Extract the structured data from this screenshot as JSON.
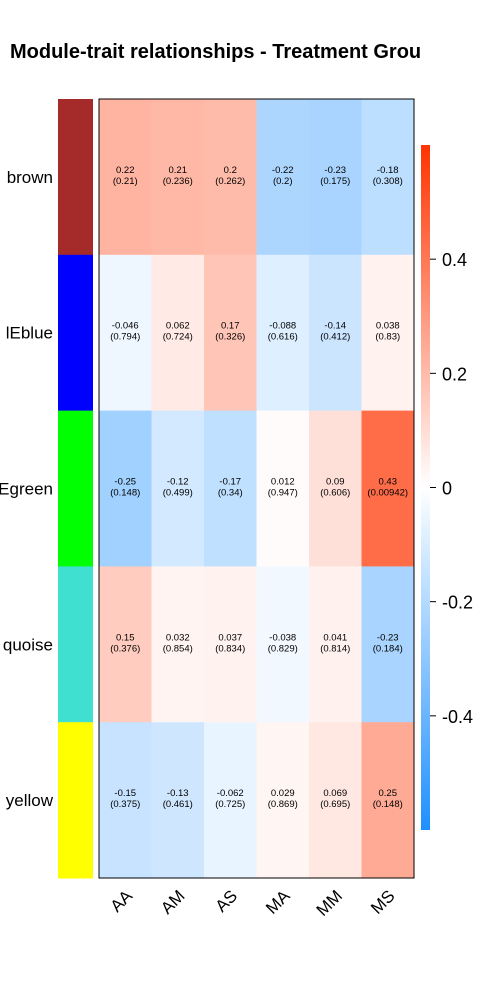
{
  "chart_data": {
    "type": "heatmap",
    "title": "Module-trait relationships - Treatment Grou",
    "rows": [
      {
        "label": "brown",
        "color": "#A52A2A"
      },
      {
        "label": "lEblue",
        "color": "#0000FF"
      },
      {
        "label": "Egreen",
        "color": "#00FF00"
      },
      {
        "label": "quoise",
        "color": "#40E0D0"
      },
      {
        "label": "yellow",
        "color": "#FFFF00"
      }
    ],
    "columns": [
      "AA",
      "AM",
      "AS",
      "MA",
      "MM",
      "MS"
    ],
    "values": [
      [
        0.22,
        0.21,
        0.2,
        -0.22,
        -0.23,
        -0.18
      ],
      [
        -0.046,
        0.062,
        0.17,
        -0.088,
        -0.14,
        0.038
      ],
      [
        -0.25,
        -0.12,
        -0.17,
        0.012,
        0.09,
        0.43
      ],
      [
        0.15,
        0.032,
        0.037,
        -0.038,
        0.041,
        -0.23
      ],
      [
        -0.15,
        -0.13,
        -0.062,
        0.029,
        0.069,
        0.25
      ]
    ],
    "pvalues": [
      [
        "0.21",
        "0.236",
        "0.262",
        "0.2",
        "0.175",
        "0.308"
      ],
      [
        "0.794",
        "0.724",
        "0.326",
        "0.616",
        "0.412",
        "0.83"
      ],
      [
        "0.148",
        "0.499",
        "0.34",
        "0.947",
        "0.606",
        "0.00942"
      ],
      [
        "0.376",
        "0.854",
        "0.834",
        "0.829",
        "0.814",
        "0.184"
      ],
      [
        "0.375",
        "0.461",
        "0.725",
        "0.869",
        "0.695",
        "0.148"
      ]
    ],
    "colorbar": {
      "range": [
        -0.6,
        0.6
      ],
      "ticks": [
        0.4,
        0.2,
        0,
        -0.2,
        -0.4
      ],
      "tick_labels": [
        "0.4",
        "0.2",
        "0",
        "-0.2",
        "-0.4"
      ],
      "low_color": "#1E90FF",
      "mid_color": "#FFFFFF",
      "high_color": "#FF3300"
    }
  }
}
